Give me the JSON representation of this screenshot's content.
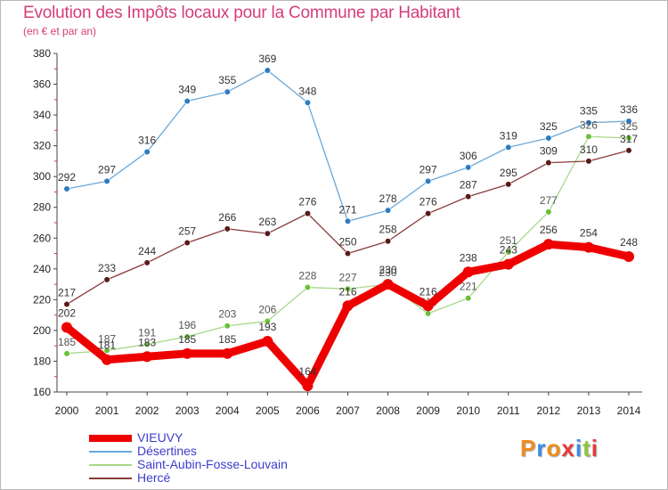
{
  "header": {
    "title": "Evolution des Impôts locaux pour la Commune par Habitant",
    "subtitle": "(en € et par an)"
  },
  "logo": {
    "text": "Proxiti",
    "colors": [
      "#f08c1e",
      "#3c8ce6",
      "#f08c1e",
      "#e63c3c",
      "#3c8ce6",
      "#8cc83c",
      "#e63c3c"
    ]
  },
  "chart_data": {
    "type": "line",
    "title": "Evolution des Impôts locaux pour la Commune par Habitant",
    "subtitle": "(en € et par an)",
    "xlabel": "",
    "ylabel": "",
    "categories": [
      "2000",
      "2001",
      "2002",
      "2003",
      "2004",
      "2005",
      "2006",
      "2007",
      "2008",
      "2009",
      "2010",
      "2011",
      "2012",
      "2013",
      "2014"
    ],
    "ylim": [
      160,
      380
    ],
    "yticks": [
      160,
      180,
      200,
      220,
      240,
      260,
      280,
      300,
      320,
      340,
      360,
      380
    ],
    "grid": false,
    "legend_position": "bottom-left",
    "series": [
      {
        "name": "Désertines",
        "color": "#6aa8d8",
        "marker": "#2e7cc0",
        "values": [
          292,
          297,
          316,
          349,
          355,
          369,
          348,
          271,
          278,
          297,
          306,
          319,
          325,
          335,
          336
        ]
      },
      {
        "name": "Saint-Aubin-Fosse-Louvain",
        "color": "#a8d88a",
        "marker": "#6ac03a",
        "values": [
          185,
          187,
          191,
          196,
          203,
          206,
          228,
          227,
          230,
          211,
          221,
          251,
          277,
          326,
          325
        ]
      },
      {
        "name": "Hercé",
        "color": "#8a3a3a",
        "marker": "#5a1a1a",
        "values": [
          217,
          233,
          244,
          257,
          266,
          263,
          276,
          250,
          258,
          276,
          287,
          295,
          309,
          310,
          317
        ]
      },
      {
        "name": "VIEUVY",
        "color": "#ee0000",
        "marker": "#ee0000",
        "values": [
          202,
          181,
          183,
          185,
          185,
          193,
          164,
          216,
          230,
          216,
          238,
          243,
          256,
          254,
          248
        ]
      }
    ],
    "legend_order": [
      "VIEUVY",
      "Désertines",
      "Saint-Aubin-Fosse-Louvain",
      "Hercé"
    ]
  }
}
